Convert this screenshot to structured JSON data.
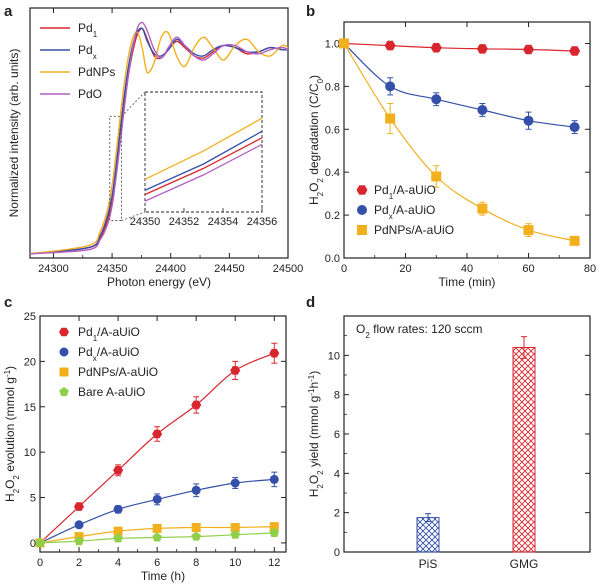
{
  "panel_labels": [
    "a",
    "b",
    "c",
    "d"
  ],
  "chart_data": [
    {
      "panel": "a",
      "type": "line",
      "xlabel": "Photon energy (eV)",
      "ylabel": "Normalized intensity (arb. units)",
      "xlim": [
        24280,
        24500
      ],
      "xticks": [
        24300,
        24350,
        24400,
        24450,
        24500
      ],
      "ylim": [
        0,
        1.2
      ],
      "legend_position": "top-left",
      "series": [
        {
          "name": "Pd",
          "sub": "1",
          "color": "#d9262e",
          "x": [
            24280,
            24330,
            24340,
            24346,
            24350,
            24353,
            24356,
            24360,
            24364,
            24368,
            24372,
            24376,
            24380,
            24386,
            24392,
            24398,
            24405,
            24412,
            24420,
            24428,
            24436,
            24445,
            24455,
            24465,
            24475,
            24485,
            24495,
            24500
          ],
          "y": [
            0.02,
            0.05,
            0.1,
            0.18,
            0.28,
            0.4,
            0.54,
            0.72,
            0.88,
            1.0,
            1.08,
            1.1,
            1.05,
            0.97,
            0.96,
            1.0,
            1.04,
            1.01,
            0.97,
            0.96,
            0.99,
            1.02,
            1.01,
            0.98,
            0.99,
            1.01,
            1.0,
            1.0
          ]
        },
        {
          "name": "Pd",
          "sub": "x",
          "color": "#3450a8",
          "x": [
            24280,
            24330,
            24340,
            24346,
            24350,
            24353,
            24356,
            24360,
            24364,
            24368,
            24372,
            24376,
            24380,
            24386,
            24392,
            24398,
            24405,
            24412,
            24420,
            24428,
            24436,
            24445,
            24455,
            24465,
            24475,
            24485,
            24495,
            24500
          ],
          "y": [
            0.02,
            0.05,
            0.11,
            0.2,
            0.3,
            0.42,
            0.57,
            0.76,
            0.92,
            1.03,
            1.09,
            1.1,
            1.04,
            0.98,
            0.97,
            1.0,
            1.05,
            1.02,
            0.98,
            0.97,
            1.0,
            1.02,
            1.01,
            0.99,
            0.99,
            1.01,
            1.0,
            1.0
          ]
        },
        {
          "name": "PdNPs",
          "color": "#f2b01e",
          "x": [
            24280,
            24330,
            24340,
            24346,
            24350,
            24353,
            24356,
            24360,
            24364,
            24368,
            24372,
            24376,
            24380,
            24386,
            24392,
            24398,
            24405,
            24412,
            24420,
            24428,
            24436,
            24445,
            24455,
            24465,
            24475,
            24485,
            24495,
            24500
          ],
          "y": [
            0.02,
            0.06,
            0.13,
            0.23,
            0.35,
            0.48,
            0.63,
            0.82,
            0.97,
            1.06,
            1.08,
            1.0,
            0.89,
            0.94,
            1.06,
            1.08,
            0.97,
            0.92,
            1.01,
            1.06,
            1.01,
            0.95,
            1.02,
            1.05,
            0.99,
            0.97,
            1.02,
            1.01
          ]
        },
        {
          "name": "PdO",
          "color": "#b160c4",
          "x": [
            24280,
            24330,
            24340,
            24346,
            24350,
            24353,
            24356,
            24360,
            24364,
            24368,
            24372,
            24376,
            24380,
            24386,
            24392,
            24398,
            24405,
            24412,
            24420,
            24428,
            24436,
            24445,
            24455,
            24465,
            24475,
            24485,
            24495,
            24500
          ],
          "y": [
            0.02,
            0.04,
            0.09,
            0.16,
            0.25,
            0.37,
            0.51,
            0.7,
            0.88,
            1.02,
            1.11,
            1.13,
            1.09,
            1.0,
            0.96,
            1.01,
            1.06,
            1.02,
            0.97,
            0.95,
            0.98,
            1.02,
            1.02,
            0.99,
            0.98,
            1.0,
            1.01,
            1.0
          ]
        }
      ],
      "inset": {
        "xlim": [
          24350,
          24356
        ],
        "xticks": [
          24350,
          24352,
          24354,
          24356
        ],
        "ylim": [
          0.2,
          0.75
        ]
      }
    },
    {
      "panel": "b",
      "type": "scatter",
      "xlabel": "Time (min)",
      "ylabel": "H2O2 degradation (C/C0)",
      "xlim": [
        0,
        80
      ],
      "xticks": [
        0,
        20,
        40,
        60,
        80
      ],
      "ylim": [
        0,
        1.1
      ],
      "yticks": [
        0.0,
        0.2,
        0.4,
        0.6,
        0.8,
        1.0
      ],
      "legend_position": "bottom-left",
      "series": [
        {
          "name": "Pd",
          "sub": "1",
          "suffix": "/A-aUiO",
          "color": "#d9262e",
          "marker": "hexagon",
          "x": [
            0,
            15,
            30,
            45,
            60,
            75
          ],
          "y": [
            1.0,
            0.99,
            0.98,
            0.975,
            0.972,
            0.965
          ],
          "err": [
            0.01,
            0.01,
            0.01,
            0.01,
            0.01,
            0.01
          ]
        },
        {
          "name": "Pd",
          "sub": "x",
          "suffix": "/A-aUiO",
          "color": "#3450a8",
          "marker": "circle",
          "x": [
            0,
            15,
            30,
            45,
            60,
            75
          ],
          "y": [
            1.0,
            0.8,
            0.74,
            0.69,
            0.64,
            0.61
          ],
          "err": [
            0.01,
            0.04,
            0.03,
            0.03,
            0.04,
            0.03
          ]
        },
        {
          "name": "PdNPs/A-aUiO",
          "color": "#f2b01e",
          "marker": "square",
          "x": [
            0,
            15,
            30,
            45,
            60,
            75
          ],
          "y": [
            1.0,
            0.65,
            0.38,
            0.23,
            0.13,
            0.08
          ],
          "err": [
            0.01,
            0.07,
            0.05,
            0.03,
            0.03,
            0.01
          ]
        }
      ]
    },
    {
      "panel": "c",
      "type": "line",
      "xlabel": "Time (h)",
      "ylabel": "H2O2 evolution (mmol g-1)",
      "xlim": [
        0,
        12.6
      ],
      "xticks": [
        0,
        2,
        4,
        6,
        8,
        10,
        12
      ],
      "ylim": [
        -1,
        25
      ],
      "yticks": [
        0,
        5,
        10,
        15,
        20,
        25
      ],
      "legend_position": "top-left",
      "series": [
        {
          "name": "Pd",
          "sub": "1",
          "suffix": "/A-aUiO",
          "color": "#d9262e",
          "marker": "hexagon",
          "x": [
            0,
            2,
            4,
            6,
            8,
            10,
            12
          ],
          "y": [
            0,
            4.0,
            8.0,
            12.0,
            15.2,
            19.0,
            20.9
          ],
          "err": [
            0.3,
            0.3,
            0.6,
            0.8,
            0.9,
            1.0,
            1.1
          ]
        },
        {
          "name": "Pd",
          "sub": "x",
          "suffix": "/A-aUiO",
          "color": "#3450a8",
          "marker": "circle",
          "x": [
            0,
            2,
            4,
            6,
            8,
            10,
            12
          ],
          "y": [
            0,
            2.0,
            3.7,
            4.8,
            5.8,
            6.6,
            7.0
          ],
          "err": [
            0.3,
            0.3,
            0.4,
            0.6,
            0.7,
            0.6,
            0.8
          ]
        },
        {
          "name": "PdNPs/A-aUiO",
          "color": "#f2b01e",
          "marker": "square",
          "x": [
            0,
            2,
            4,
            6,
            8,
            10,
            12
          ],
          "y": [
            0,
            0.7,
            1.3,
            1.6,
            1.7,
            1.7,
            1.8
          ],
          "err": [
            0.3,
            0.2,
            0.2,
            0.2,
            0.2,
            0.2,
            0.2
          ]
        },
        {
          "name": "Bare A-aUiO",
          "color": "#8fcf4a",
          "marker": "pentagon",
          "x": [
            0,
            2,
            4,
            6,
            8,
            10,
            12
          ],
          "y": [
            0,
            0.2,
            0.5,
            0.6,
            0.7,
            0.9,
            1.1
          ],
          "err": [
            0.2,
            0.1,
            0.1,
            0.1,
            0.1,
            0.1,
            0.1
          ]
        }
      ]
    },
    {
      "panel": "d",
      "type": "bar",
      "annotation": "O2 flow rates: 120 sccm",
      "ylabel": "H2O2 yield (mmol g-1 h-1)",
      "ylim": [
        0,
        12
      ],
      "yticks": [
        0,
        2,
        4,
        6,
        8,
        10
      ],
      "categories": [
        "PiS",
        "GMG"
      ],
      "values": [
        1.75,
        10.4
      ],
      "err": [
        0.2,
        0.55
      ],
      "colors": [
        "#3450a8",
        "#d9262e"
      ],
      "fill": "crosshatch"
    }
  ]
}
